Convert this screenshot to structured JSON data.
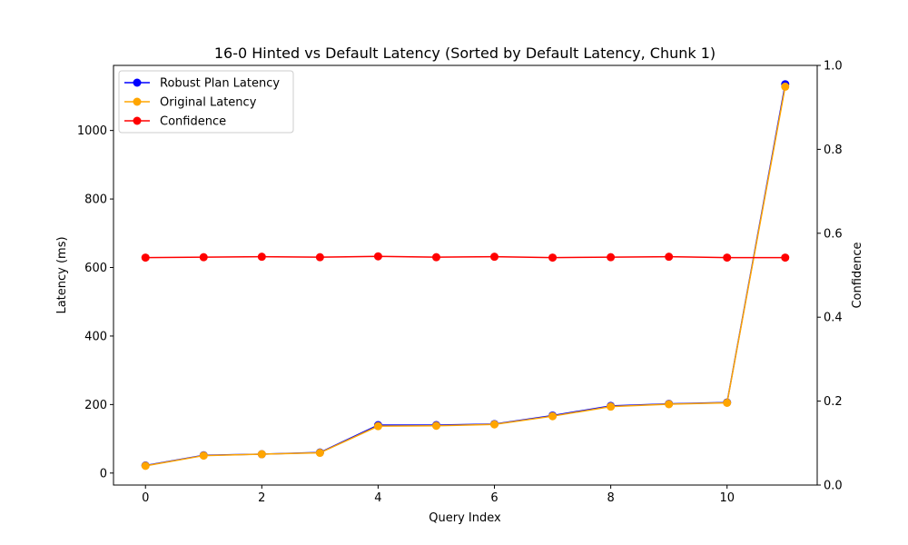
{
  "chart_data": {
    "type": "line",
    "title": "16-0 Hinted vs Default Latency (Sorted by Default Latency, Chunk 1)",
    "xlabel": "Query Index",
    "ylabel": "Latency (ms)",
    "y2label": "Confidence",
    "x": [
      0,
      1,
      2,
      3,
      4,
      5,
      6,
      7,
      8,
      9,
      10,
      11
    ],
    "xlim": [
      -0.55,
      11.55
    ],
    "ylim": [
      -35,
      1190
    ],
    "y2lim": [
      0,
      1.0
    ],
    "xticks": [
      0,
      2,
      4,
      6,
      8,
      10
    ],
    "yticks": [
      0,
      200,
      400,
      600,
      800,
      1000
    ],
    "y2ticks": [
      0.0,
      0.2,
      0.4,
      0.6,
      0.8,
      1.0
    ],
    "xtick_labels": [
      "0",
      "2",
      "4",
      "6",
      "8",
      "10"
    ],
    "ytick_labels": [
      "0",
      "200",
      "400",
      "600",
      "800",
      "1000"
    ],
    "y2tick_labels": [
      "0.0",
      "0.2",
      "0.4",
      "0.6",
      "0.8",
      "1.0"
    ],
    "grid": false,
    "legend_position": "top-left",
    "series": [
      {
        "name": "Robust Plan Latency",
        "axis": "left",
        "color": "#0000ff",
        "values": [
          22,
          52,
          55,
          60,
          140,
          140,
          143,
          168,
          196,
          202,
          206,
          1135
        ]
      },
      {
        "name": "Original Latency",
        "axis": "left",
        "color": "#ffa500",
        "values": [
          21,
          51,
          55,
          59,
          137,
          138,
          142,
          166,
          194,
          201,
          205,
          1128
        ]
      },
      {
        "name": "Confidence",
        "axis": "right",
        "color": "#ff0000",
        "values": [
          0.542,
          0.543,
          0.544,
          0.543,
          0.545,
          0.543,
          0.544,
          0.542,
          0.543,
          0.544,
          0.542,
          0.542
        ]
      }
    ]
  }
}
